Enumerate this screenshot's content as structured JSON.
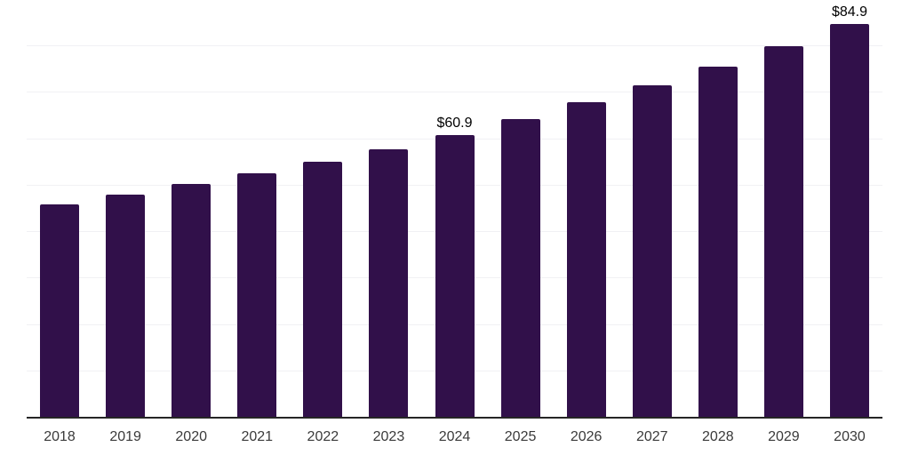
{
  "chart_data": {
    "type": "bar",
    "title": "",
    "xlabel": "",
    "ylabel": "",
    "categories": [
      "2018",
      "2019",
      "2020",
      "2021",
      "2022",
      "2023",
      "2024",
      "2025",
      "2026",
      "2027",
      "2028",
      "2029",
      "2030"
    ],
    "values": [
      46.0,
      48.0,
      50.3,
      52.7,
      55.2,
      57.9,
      60.9,
      64.3,
      68.0,
      71.6,
      75.6,
      80.0,
      84.9
    ],
    "data_labels": {
      "2024": "$60.9",
      "2030": "$84.9"
    },
    "ylim": [
      0,
      90
    ],
    "gridline_interval": 10,
    "grid": true,
    "legend": false,
    "y_axis_labels_visible": false,
    "colors": {
      "bar": "#31104A",
      "gridline": "#f1f1f4",
      "axis_line": "#262626",
      "tick_label": "#3a3a3a",
      "data_label": "#000000",
      "background": "#ffffff"
    }
  }
}
